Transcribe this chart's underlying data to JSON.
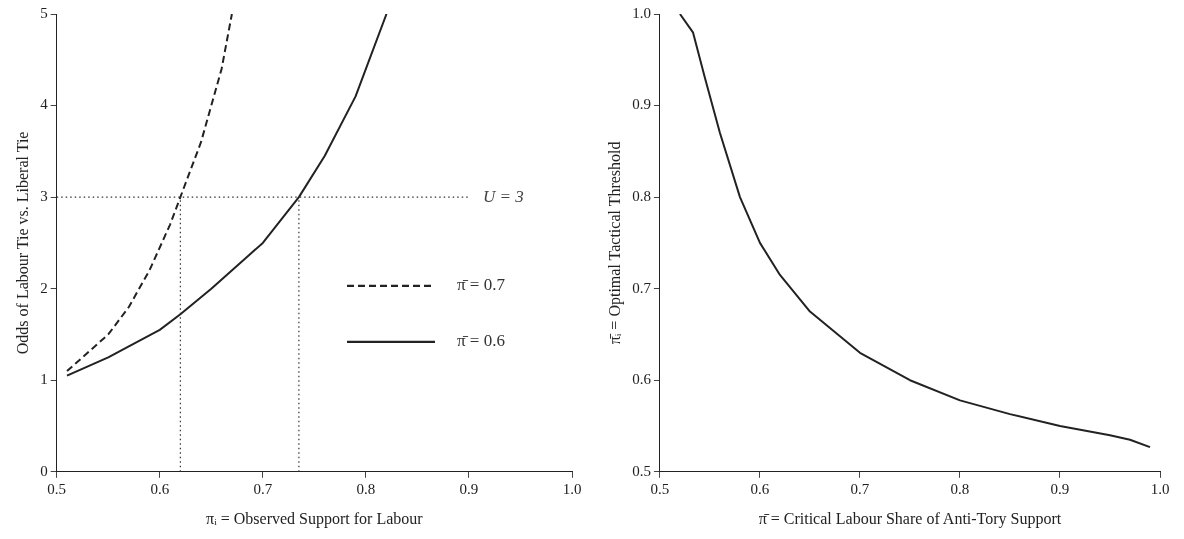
{
  "chart_data": [
    {
      "type": "line",
      "xlabel": "πᵢ = Observed Support for Labour",
      "ylabel": "Odds of Labour Tie vs. Liberal Tie",
      "xlim": [
        0.5,
        1.0
      ],
      "ylim": [
        0,
        5
      ],
      "xticks": [
        0.5,
        0.6,
        0.7,
        0.8,
        0.9,
        {
          "value": 1.0,
          "label": "1.0"
        }
      ],
      "yticks": [
        0,
        1,
        2,
        3,
        4,
        5
      ],
      "grid": false,
      "legend": "bottom right",
      "marker": "none",
      "series": [
        {
          "name": "π̄ = 0.7",
          "color": "#222222",
          "line_style": "dashed",
          "x": [
            0.51,
            0.53,
            0.55,
            0.57,
            0.59,
            0.61,
            0.62,
            0.64,
            0.66,
            0.67
          ],
          "values": [
            1.1,
            1.3,
            1.5,
            1.8,
            2.2,
            2.7,
            3.0,
            3.6,
            4.4,
            5.0
          ]
        },
        {
          "name": "π̄ = 0.6",
          "color": "#222222",
          "line_style": "solid",
          "x": [
            0.51,
            0.55,
            0.6,
            0.62,
            0.65,
            0.7,
            0.735,
            0.76,
            0.79,
            0.82
          ],
          "values": [
            1.05,
            1.25,
            1.55,
            1.72,
            2.0,
            2.5,
            3.0,
            3.45,
            4.1,
            5.0
          ]
        }
      ],
      "ref_lines": [
        {
          "axis": "y",
          "value": 3,
          "label": "U = 3",
          "color": "#333333",
          "line_style": "dotted"
        },
        {
          "axis": "x",
          "value": 0.62,
          "color": "#333333",
          "line_style": "dotted"
        },
        {
          "axis": "x",
          "value": 0.735,
          "color": "#333333",
          "line_style": "dotted"
        }
      ]
    },
    {
      "type": "line",
      "xlabel": "π̄ = Critical Labour Share of Anti-Tory Support",
      "ylabel": "π̄ᵢ = Optimal Tactical Threshold",
      "xlim": [
        0.5,
        1.0
      ],
      "ylim": [
        0.5,
        1.0
      ],
      "xticks": [
        0.5,
        0.6,
        0.7,
        0.8,
        0.9,
        {
          "value": 1.0,
          "label": "1.0"
        }
      ],
      "yticks": [
        0.5,
        0.6,
        0.7,
        0.8,
        0.9,
        {
          "value": 1.0,
          "label": "1.0"
        }
      ],
      "grid": false,
      "legend": false,
      "marker": "none",
      "series": [
        {
          "color": "#222222",
          "line_style": "solid",
          "x": [
            0.52,
            0.533,
            0.545,
            0.56,
            0.58,
            0.6,
            0.62,
            0.65,
            0.7,
            0.75,
            0.8,
            0.85,
            0.9,
            0.95,
            0.97,
            0.99
          ],
          "values": [
            1.0,
            0.98,
            0.93,
            0.87,
            0.8,
            0.75,
            0.715,
            0.675,
            0.63,
            0.6,
            0.578,
            0.563,
            0.55,
            0.54,
            0.535,
            0.527
          ]
        }
      ]
    }
  ]
}
